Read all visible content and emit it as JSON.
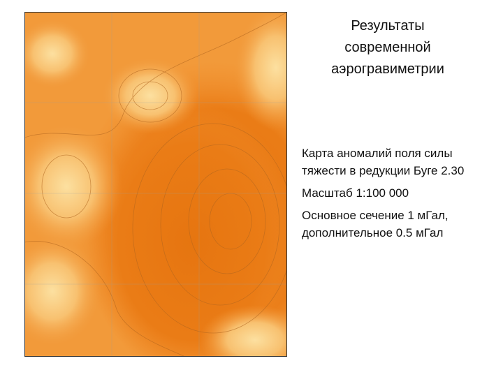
{
  "title": "Результаты современной аэрогравиметрии",
  "paragraphs": [
    "Карта аномалий поля силы тяжести в редукции Буге 2.30",
    "Масштаб 1:100 000",
    "Основное сечение 1 мГал, дополнительное 0.5 мГал"
  ]
}
